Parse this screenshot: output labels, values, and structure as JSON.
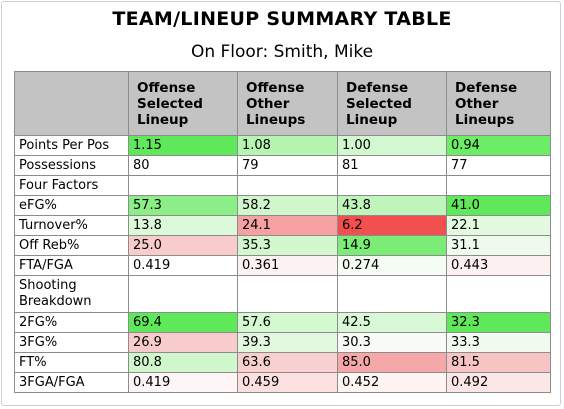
{
  "title": "TEAM/LINEUP SUMMARY TABLE",
  "subtitle": "On Floor: Smith, Mike",
  "columns": [
    "Offense Selected Lineup",
    "Offense Other Lineups",
    "Defense Selected Lineup",
    "Defense Other Lineups"
  ],
  "rows": [
    {
      "label": "Points Per Pos",
      "cells": [
        {
          "v": "1.15",
          "bg": "#5fe85a"
        },
        {
          "v": "1.08",
          "bg": "#b6f5b1"
        },
        {
          "v": "1.00",
          "bg": "#d2f8cf"
        },
        {
          "v": "0.94",
          "bg": "#6ced66"
        }
      ]
    },
    {
      "label": "Possessions",
      "cells": [
        {
          "v": "80",
          "bg": "#ffffff"
        },
        {
          "v": "79",
          "bg": "#ffffff"
        },
        {
          "v": "81",
          "bg": "#ffffff"
        },
        {
          "v": "77",
          "bg": "#ffffff"
        }
      ]
    },
    {
      "section": "Four Factors"
    },
    {
      "label": "eFG%",
      "cells": [
        {
          "v": "57.3",
          "bg": "#8cee86"
        },
        {
          "v": "58.2",
          "bg": "#cff7cb"
        },
        {
          "v": "43.8",
          "bg": "#bff4ba"
        },
        {
          "v": "41.0",
          "bg": "#5fe85a"
        }
      ]
    },
    {
      "label": "Turnover%",
      "cells": [
        {
          "v": "13.8",
          "bg": "#dcf9d9"
        },
        {
          "v": "24.1",
          "bg": "#f6a2a2"
        },
        {
          "v": "6.2",
          "bg": "#f24f4f"
        },
        {
          "v": "22.1",
          "bg": "#e3f9e0"
        }
      ]
    },
    {
      "label": "Off Reb%",
      "cells": [
        {
          "v": "25.0",
          "bg": "#f9cccc"
        },
        {
          "v": "35.3",
          "bg": "#d2f7ce"
        },
        {
          "v": "14.9",
          "bg": "#7bec75"
        },
        {
          "v": "31.1",
          "bg": "#eefbec"
        }
      ]
    },
    {
      "label": "FTA/FGA",
      "cells": [
        {
          "v": "0.419",
          "bg": "#ffffff"
        },
        {
          "v": "0.361",
          "bg": "#fdf2f2"
        },
        {
          "v": "0.274",
          "bg": "#f4fcf3"
        },
        {
          "v": "0.443",
          "bg": "#fdf0f0"
        }
      ]
    },
    {
      "section": "Shooting Breakdown",
      "tall": true
    },
    {
      "label": "2FG%",
      "cells": [
        {
          "v": "69.4",
          "bg": "#5fe85a"
        },
        {
          "v": "57.6",
          "bg": "#d4f8d0"
        },
        {
          "v": "42.5",
          "bg": "#d9f8d6"
        },
        {
          "v": "32.3",
          "bg": "#5fe85a"
        }
      ]
    },
    {
      "label": "3FG%",
      "cells": [
        {
          "v": "26.9",
          "bg": "#f8cccc"
        },
        {
          "v": "39.3",
          "bg": "#e2f9df"
        },
        {
          "v": "30.3",
          "bg": "#f6fcf5"
        },
        {
          "v": "33.3",
          "bg": "#f1fbef"
        }
      ]
    },
    {
      "label": "FT%",
      "cells": [
        {
          "v": "80.8",
          "bg": "#cff7cb"
        },
        {
          "v": "63.6",
          "bg": "#f8d0d0"
        },
        {
          "v": "85.0",
          "bg": "#f6a7a7"
        },
        {
          "v": "81.5",
          "bg": "#f7c4c4"
        }
      ]
    },
    {
      "label": "3FGA/FGA",
      "cells": [
        {
          "v": "0.419",
          "bg": "#fef6f6"
        },
        {
          "v": "0.459",
          "bg": "#fce0e0"
        },
        {
          "v": "0.452",
          "bg": "#fef4f4"
        },
        {
          "v": "0.492",
          "bg": "#fde6e6"
        }
      ]
    }
  ]
}
